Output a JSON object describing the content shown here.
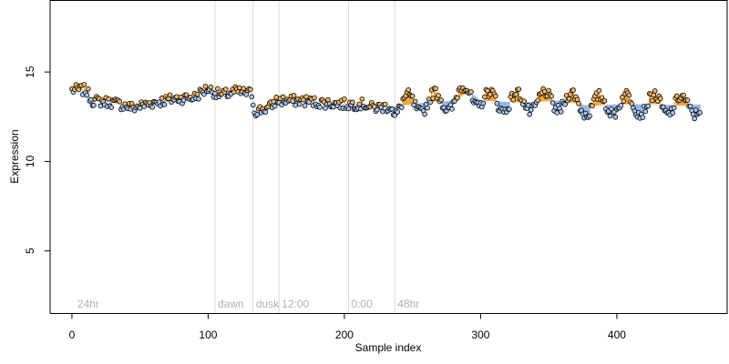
{
  "chart_data": {
    "type": "scatter",
    "xlabel": "Sample index",
    "ylabel": "Expression",
    "xlim": [
      -16,
      481
    ],
    "ylim": [
      1.5,
      19
    ],
    "x_ticks": [
      0,
      100,
      200,
      300,
      400
    ],
    "y_ticks": [
      5,
      10,
      15
    ],
    "grid": false,
    "phase_markers": [
      {
        "label": "24hr",
        "x": 2,
        "line": false
      },
      {
        "label": "dawn",
        "x": 105,
        "line": true
      },
      {
        "label": "dusk",
        "x": 133,
        "line": true
      },
      {
        "label": "12:00",
        "x": 152,
        "line": true
      },
      {
        "label": "0:00",
        "x": 203,
        "line": true
      },
      {
        "label": "48hr",
        "x": 237,
        "line": true
      }
    ],
    "colors": {
      "fill_high": "#f5b66a",
      "fill_low": "#a9c8f0",
      "stem_high": "#f0a030",
      "stem_low": "#8fb0e0",
      "point_stroke": "#000000",
      "guide_line": "#d9d9d9",
      "axis": "#000000"
    },
    "n_points": 462,
    "reference_curve": [
      [
        0,
        14.0
      ],
      [
        10,
        14.0
      ],
      [
        15,
        13.4
      ],
      [
        30,
        13.3
      ],
      [
        45,
        13.0
      ],
      [
        60,
        13.3
      ],
      [
        75,
        13.5
      ],
      [
        90,
        13.6
      ],
      [
        100,
        14.1
      ],
      [
        106,
        13.8
      ],
      [
        110,
        13.7
      ],
      [
        120,
        13.9
      ],
      [
        132,
        13.8
      ],
      [
        134,
        12.8
      ],
      [
        145,
        13.0
      ],
      [
        150,
        13.4
      ],
      [
        170,
        13.4
      ],
      [
        180,
        13.3
      ],
      [
        200,
        13.2
      ],
      [
        215,
        13.2
      ],
      [
        220,
        13.0
      ],
      [
        240,
        13.1
      ],
      [
        260,
        13.3
      ],
      [
        280,
        13.4
      ],
      [
        292,
        13.9
      ],
      [
        300,
        13.4
      ],
      [
        330,
        13.3
      ],
      [
        360,
        13.4
      ],
      [
        380,
        13.1
      ],
      [
        400,
        13.2
      ],
      [
        430,
        13.2
      ],
      [
        450,
        13.1
      ],
      [
        462,
        13.2
      ]
    ],
    "series": [
      {
        "values": []
      }
    ]
  }
}
